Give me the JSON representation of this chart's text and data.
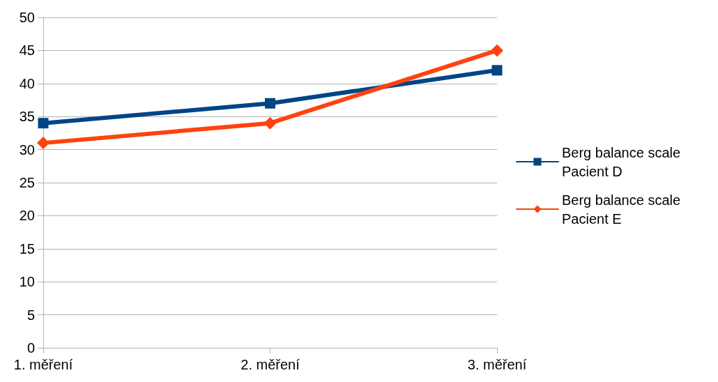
{
  "chart_data": {
    "type": "line",
    "categories": [
      "1. měření",
      "2. měření",
      "3. měření"
    ],
    "series": [
      {
        "name": "Berg balance scale Pacient D",
        "color": "#004586",
        "marker": "square",
        "values": [
          34,
          37,
          42
        ]
      },
      {
        "name": "Berg balance scale Pacient E",
        "color": "#ff420e",
        "marker": "diamond",
        "values": [
          31,
          34,
          45
        ]
      }
    ],
    "ylim": [
      0,
      50
    ],
    "yticks": [
      0,
      5,
      10,
      15,
      20,
      25,
      30,
      35,
      40,
      45,
      50
    ],
    "grid": "y",
    "legend": "right",
    "line_style": "solid"
  }
}
